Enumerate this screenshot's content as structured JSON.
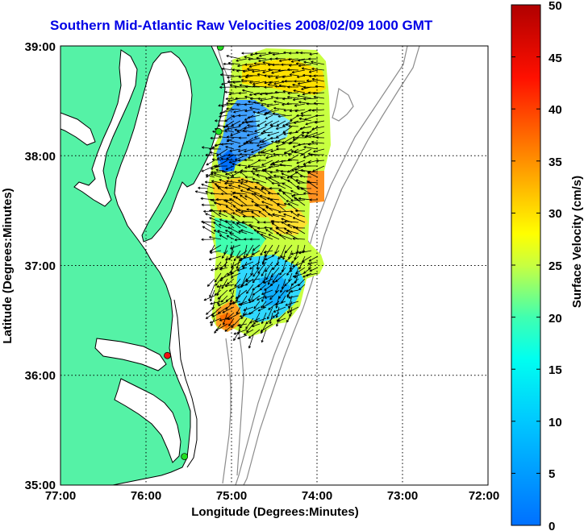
{
  "title": "Southern Mid-Atlantic Raw Velocities 2008/02/09 1000 GMT",
  "map": {
    "xlabel": "Longitude (Degrees:Minutes)",
    "ylabel": "Latitude (Degrees:Minutes)",
    "x_ticks": [
      "77:00",
      "76:00",
      "75:00",
      "74:00",
      "73:00",
      "72:00"
    ],
    "y_ticks": [
      "39:00",
      "38:00",
      "37:00",
      "36:00",
      "35:00"
    ],
    "lon_range": [
      -77,
      -72
    ],
    "lat_range": [
      35,
      39
    ],
    "land_color": "#55f2a6",
    "isobath_color": "#8c8c8c",
    "stations": [
      {
        "lon": -75.13,
        "lat": 38.99,
        "status": "green"
      },
      {
        "lon": -75.15,
        "lat": 38.22,
        "status": "green"
      },
      {
        "lon": -75.75,
        "lat": 36.18,
        "status": "red"
      },
      {
        "lon": -75.55,
        "lat": 35.26,
        "status": "green"
      }
    ]
  },
  "colorbar": {
    "label": "Surface Velocity (cm/s)",
    "min": 0,
    "max": 50,
    "ticks": [
      "0",
      "5",
      "10",
      "15",
      "20",
      "25",
      "30",
      "35",
      "40",
      "45",
      "50"
    ],
    "colormap": "jet"
  }
}
